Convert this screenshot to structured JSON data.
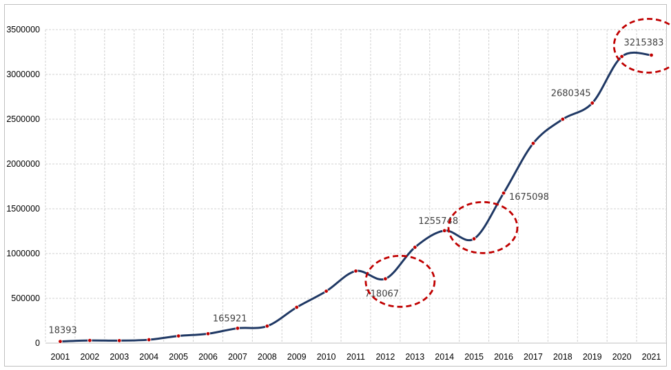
{
  "chart_data": {
    "type": "line",
    "title": "",
    "xlabel": "",
    "ylabel": "",
    "x": [
      "2001",
      "2002",
      "2003",
      "2004",
      "2005",
      "2006",
      "2007",
      "2008",
      "2009",
      "2010",
      "2011",
      "2012",
      "2013",
      "2014",
      "2015",
      "2016",
      "2017",
      "2018",
      "2019",
      "2020",
      "2021"
    ],
    "series": [
      {
        "values": [
          18393,
          30000,
          28000,
          38000,
          80000,
          105000,
          165921,
          190000,
          400000,
          580000,
          805000,
          718067,
          1070000,
          1255748,
          1165000,
          1675098,
          2230000,
          2500000,
          2680345,
          3200000,
          3215383
        ]
      }
    ],
    "ylim": [
      0,
      3500000
    ],
    "yticks": [
      0,
      500000,
      1000000,
      1500000,
      2000000,
      2500000,
      3000000,
      3500000
    ],
    "ytick_labels": [
      "0",
      "500000",
      "1000000",
      "1500000",
      "2000000",
      "2500000",
      "3000000",
      "3500000"
    ],
    "grid": true,
    "legend": "none",
    "data_labels": [
      {
        "index": 0,
        "text": "18393"
      },
      {
        "index": 6,
        "text": "165921"
      },
      {
        "index": 11,
        "text": "718067"
      },
      {
        "index": 13,
        "text": "1255748"
      },
      {
        "index": 15,
        "text": "1675098"
      },
      {
        "index": 18,
        "text": "2680345"
      },
      {
        "index": 20,
        "text": "3215383"
      }
    ],
    "highlights": [
      {
        "center_x": 11.5,
        "center_y": 690000
      },
      {
        "center_x": 14.3,
        "center_y": 1290000
      },
      {
        "center_x": 19.9,
        "center_y": 3320000
      }
    ],
    "colors": {
      "line": "#1f3864",
      "marker": "#c00000",
      "highlight": "#c00000",
      "grid": "#d0d0d0"
    }
  }
}
